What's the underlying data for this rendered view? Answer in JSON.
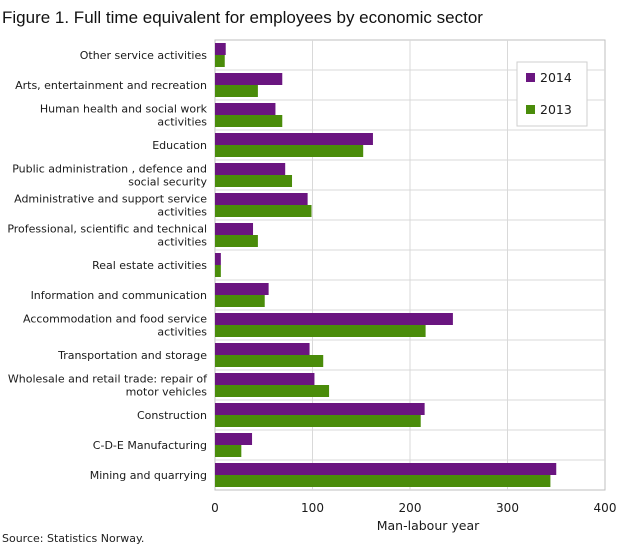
{
  "title": "Figure 1. Full time equivalent for employees by economic sector",
  "source": "Source: Statistics Norway.",
  "colors": {
    "2014": "#6a1580",
    "2013": "#4a8c0a",
    "grid": "#d9d9d9",
    "frame": "#bfbfbf"
  },
  "chart_data": {
    "type": "bar",
    "orientation": "horizontal",
    "categories": [
      [
        "Other service activities"
      ],
      [
        "Arts, entertainment and recreation"
      ],
      [
        "Human health and social work",
        "activities"
      ],
      [
        "Education"
      ],
      [
        "Public administration , defence and",
        "social security"
      ],
      [
        "Administrative and support service",
        "activities"
      ],
      [
        "Professional, scientific and technical",
        "activities"
      ],
      [
        "Real estate activities"
      ],
      [
        "Information and communication"
      ],
      [
        "Accommodation and food service",
        "activities"
      ],
      [
        "Transportation and storage"
      ],
      [
        "Wholesale and retail trade: repair of",
        "motor vehicles"
      ],
      [
        "Construction"
      ],
      [
        "C-D-E Manufacturing"
      ],
      [
        "Mining and quarrying"
      ]
    ],
    "series": [
      {
        "name": "2014",
        "values": [
          11,
          69,
          62,
          162,
          72,
          95,
          39,
          6,
          55,
          244,
          97,
          102,
          215,
          38,
          350
        ]
      },
      {
        "name": "2013",
        "values": [
          10,
          44,
          69,
          152,
          79,
          99,
          44,
          6,
          51,
          216,
          111,
          117,
          211,
          27,
          344
        ]
      }
    ],
    "xlabel": "Man-labour  year",
    "xlim": [
      0,
      400
    ],
    "xticks": [
      "0",
      "100",
      "200",
      "300",
      "400"
    ],
    "grid": true,
    "legend_position": "top-right"
  }
}
